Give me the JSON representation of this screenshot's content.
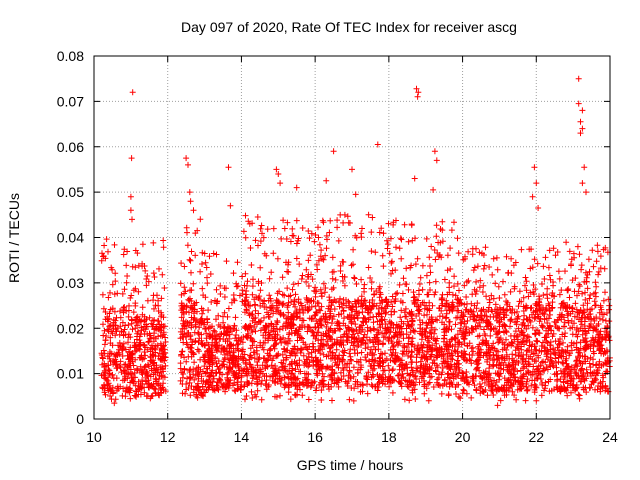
{
  "chart_data": {
    "type": "scatter",
    "title": "Day 097 of 2020, Rate Of TEC Index for receiver ascg",
    "xlabel": "GPS time / hours",
    "ylabel": "ROTI / TECUs",
    "xlim": [
      10,
      24
    ],
    "ylim": [
      0,
      0.08
    ],
    "x_ticks": [
      10,
      12,
      14,
      16,
      18,
      20,
      22,
      24
    ],
    "y_ticks": [
      0,
      0.01,
      0.02,
      0.03,
      0.04,
      0.05,
      0.06,
      0.07,
      0.08
    ],
    "x_tick_labels": [
      "10",
      "12",
      "14",
      "16",
      "18",
      "20",
      "22",
      "24"
    ],
    "y_tick_labels": [
      "0",
      "0.01",
      "0.02",
      "0.03",
      "0.04",
      "0.05",
      "0.06",
      "0.07",
      "0.08"
    ],
    "grid": true,
    "marker": "+",
    "color": "#ff0000",
    "series": [
      {
        "name": "ROTI",
        "points": [
          [
            11.05,
            0.072
          ],
          [
            11.02,
            0.0575
          ],
          [
            11.0,
            0.049
          ],
          [
            11.0,
            0.046
          ],
          [
            11.03,
            0.044
          ],
          [
            12.5,
            0.0575
          ],
          [
            12.55,
            0.056
          ],
          [
            12.6,
            0.05
          ],
          [
            12.62,
            0.048
          ],
          [
            12.7,
            0.046
          ],
          [
            13.65,
            0.0555
          ],
          [
            13.7,
            0.047
          ],
          [
            14.95,
            0.055
          ],
          [
            15.0,
            0.054
          ],
          [
            15.05,
            0.052
          ],
          [
            15.5,
            0.051
          ],
          [
            16.5,
            0.059
          ],
          [
            16.3,
            0.0525
          ],
          [
            17.0,
            0.055
          ],
          [
            17.1,
            0.0495
          ],
          [
            17.45,
            0.045
          ],
          [
            17.7,
            0.0605
          ],
          [
            18.75,
            0.0728
          ],
          [
            18.8,
            0.072
          ],
          [
            18.78,
            0.071
          ],
          [
            18.7,
            0.053
          ],
          [
            19.25,
            0.059
          ],
          [
            19.3,
            0.057
          ],
          [
            19.2,
            0.0505
          ],
          [
            21.95,
            0.0555
          ],
          [
            22.0,
            0.052
          ],
          [
            21.9,
            0.049
          ],
          [
            22.05,
            0.0465
          ],
          [
            23.15,
            0.075
          ],
          [
            23.15,
            0.0695
          ],
          [
            23.25,
            0.068
          ],
          [
            23.2,
            0.0655
          ],
          [
            23.25,
            0.064
          ],
          [
            23.2,
            0.063
          ],
          [
            23.3,
            0.0555
          ],
          [
            23.25,
            0.052
          ],
          [
            23.35,
            0.05
          ],
          [
            17.05,
            0.004
          ],
          [
            20.95,
            0.003
          ],
          [
            10.55,
            0.0035
          ]
        ]
      }
    ],
    "data_segments": [
      {
        "x_start": 10.2,
        "x_end": 11.95,
        "base_low": 0.005,
        "base_high": 0.022,
        "spike_max": 0.04
      },
      {
        "x_start": 12.35,
        "x_end": 13.0,
        "base_low": 0.005,
        "base_high": 0.025,
        "spike_max": 0.045
      },
      {
        "x_start": 13.0,
        "x_end": 14.0,
        "base_low": 0.006,
        "base_high": 0.02,
        "spike_max": 0.037
      },
      {
        "x_start": 14.0,
        "x_end": 18.0,
        "base_low": 0.007,
        "base_high": 0.026,
        "spike_max": 0.045
      },
      {
        "x_start": 18.0,
        "x_end": 20.0,
        "base_low": 0.007,
        "base_high": 0.026,
        "spike_max": 0.044
      },
      {
        "x_start": 20.0,
        "x_end": 22.0,
        "base_low": 0.006,
        "base_high": 0.024,
        "spike_max": 0.038
      },
      {
        "x_start": 22.0,
        "x_end": 24.0,
        "base_low": 0.006,
        "base_high": 0.025,
        "spike_max": 0.039
      }
    ]
  }
}
